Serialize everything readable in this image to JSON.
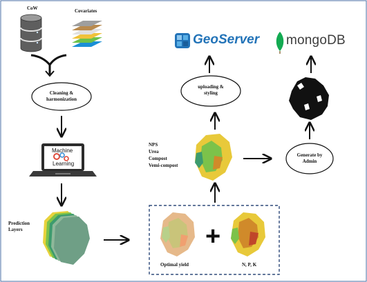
{
  "sources": {
    "cow_label": "CoW",
    "covariates_label": "Covariates"
  },
  "steps": {
    "cleaning": "Cleaning & harmonization",
    "ml_line1": "Machine",
    "ml_line2": "Learning",
    "uploading": "uploading & styling",
    "generate": "Generate by Admin"
  },
  "layers": {
    "prediction": [
      "Prediction",
      "Layers"
    ],
    "fertilizers": [
      "NPS",
      "Urea",
      "Compost",
      "Vemi-compost"
    ],
    "optimal_yield": "Optimal yield",
    "npk": "N, P, K"
  },
  "logos": {
    "geoserver": "GeoServer",
    "mongodb": "mongoDB"
  },
  "colors": {
    "border": "#4a6fa5",
    "dashed_box": "#2f4a7a",
    "arrow": "#111111",
    "geoserver": "#2273b8",
    "mongo_leaf": "#13aa52"
  }
}
